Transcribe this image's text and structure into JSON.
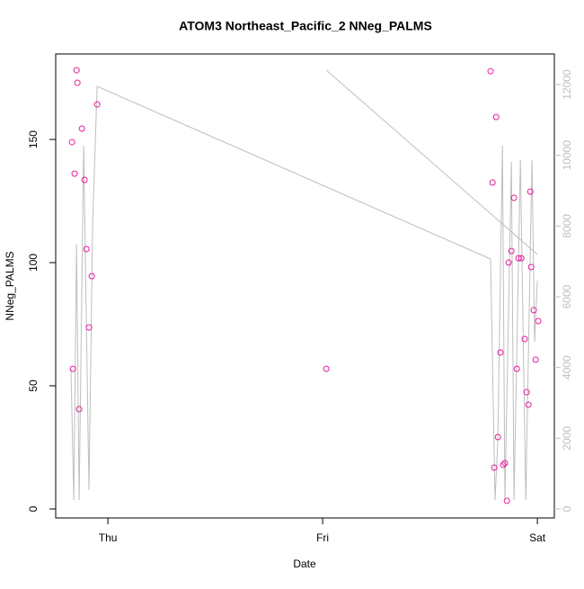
{
  "chart_data": {
    "type": "scatter",
    "title": "ATOM3 Northeast_Pacific_2 NNeg_PALMS",
    "x_label": "Date",
    "y_label": "NNeg_PALMS",
    "xlim": [
      -0.243,
      2.079
    ],
    "xticks": [
      {
        "value": 0,
        "label": "Thu"
      },
      {
        "value": 1,
        "label": "Fri"
      },
      {
        "value": 2,
        "label": "Sat"
      }
    ],
    "ylim": [
      -3.65,
      184.7
    ],
    "yticks": [
      0,
      50,
      100,
      150
    ],
    "y2lim": [
      -254,
      12865
    ],
    "y2ticks": [
      0,
      2000,
      4000,
      6000,
      8000,
      10000,
      12000
    ],
    "points": {
      "color": "#e61e9b",
      "x": [
        -0.167,
        -0.163,
        -0.155,
        -0.146,
        -0.142,
        -0.134,
        -0.121,
        -0.109,
        -0.1,
        -0.088,
        -0.075,
        -0.05,
        1.017,
        1.782,
        1.791,
        1.799,
        1.808,
        1.816,
        1.828,
        1.841,
        1.849,
        1.858,
        1.866,
        1.879,
        1.891,
        1.904,
        1.912,
        1.925,
        1.941,
        1.95,
        1.958,
        1.967,
        1.971,
        1.983,
        1.992,
        2.004
      ],
      "y": [
        148.9,
        56.9,
        136.1,
        178.1,
        173.0,
        40.5,
        154.4,
        133.6,
        105.5,
        73.7,
        94.5,
        164.2,
        56.9,
        177.7,
        132.5,
        16.8,
        159.1,
        29.2,
        63.5,
        17.9,
        18.6,
        3.3,
        100.0,
        104.7,
        126.3,
        56.9,
        101.8,
        101.8,
        69.0,
        47.4,
        42.3,
        128.8,
        98.2,
        80.7,
        60.6,
        76.3
      ]
    },
    "line": {
      "color": "#bebebe",
      "axis": "y2",
      "x": [
        -0.172,
        -0.159,
        -0.146,
        -0.134,
        -0.113,
        -0.088,
        -0.071,
        -0.05,
        1.782,
        1.803,
        1.816,
        1.837,
        1.849,
        1.879,
        1.891,
        1.921,
        1.946,
        1.975,
        1.987,
        2.0,
        null,
        1.017,
        2.0
      ],
      "y": [
        3966,
        254,
        7475,
        254,
        10272,
        534,
        8034,
        11950,
        7068,
        254,
        1932,
        10272,
        254,
        9814,
        254,
        9865,
        254,
        9865,
        4729,
        6458,
        null,
        12408,
        7196
      ]
    }
  }
}
